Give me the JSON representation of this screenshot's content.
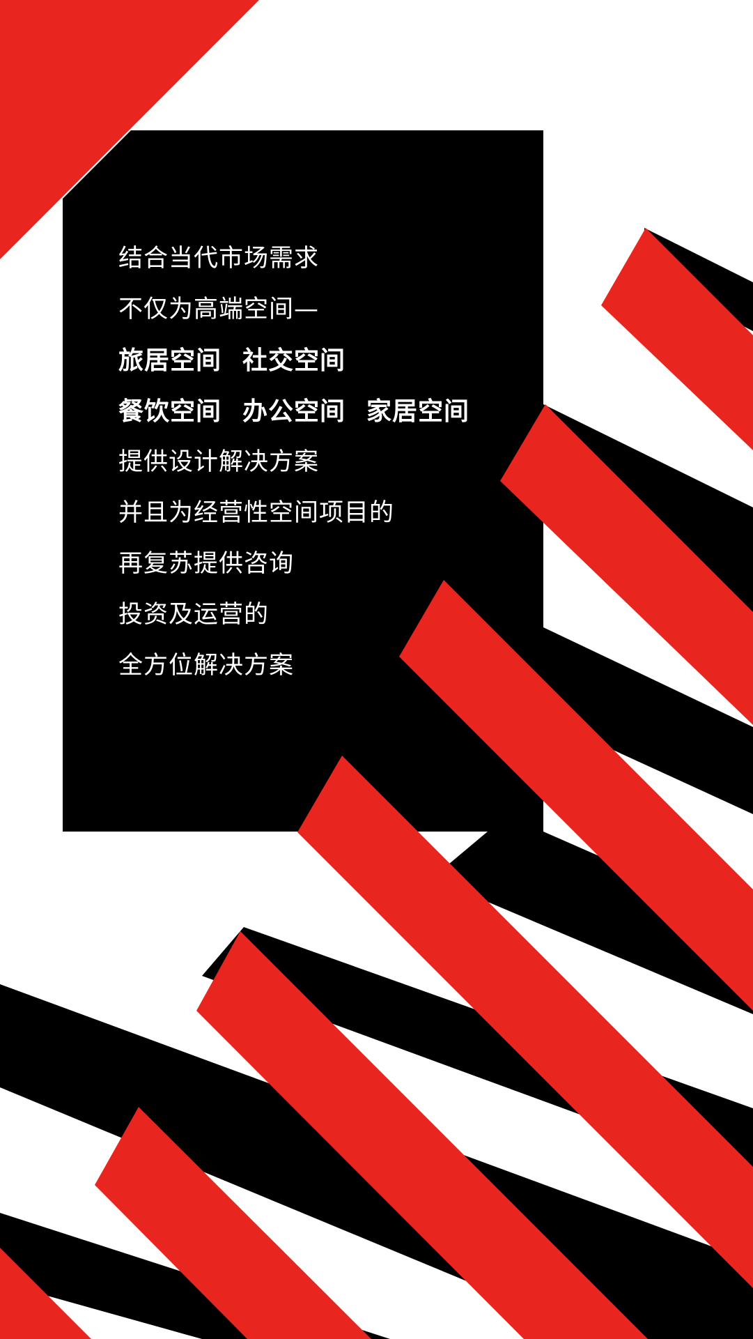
{
  "colors": {
    "background": "#ffffff",
    "red": "#e8261f",
    "black": "#000000",
    "text": "#ffffff"
  },
  "text_block": {
    "lines": [
      {
        "segments": [
          "结合当代市场需求"
        ],
        "bold": false
      },
      {
        "segments": [
          "不仅为高端空间—"
        ],
        "bold": false
      },
      {
        "segments": [
          "旅居空间",
          "社交空间"
        ],
        "bold": true
      },
      {
        "segments": [
          "餐饮空间",
          "办公空间",
          "家居空间"
        ],
        "bold": true
      },
      {
        "segments": [
          "提供设计解决方案"
        ],
        "bold": false
      },
      {
        "segments": [
          "并且为经营性空间项目的"
        ],
        "bold": false
      },
      {
        "segments": [
          "再复苏提供咨询"
        ],
        "bold": false
      },
      {
        "segments": [
          "投资及运营的"
        ],
        "bold": false
      },
      {
        "segments": [
          "全方位解决方案"
        ],
        "bold": false
      }
    ]
  }
}
